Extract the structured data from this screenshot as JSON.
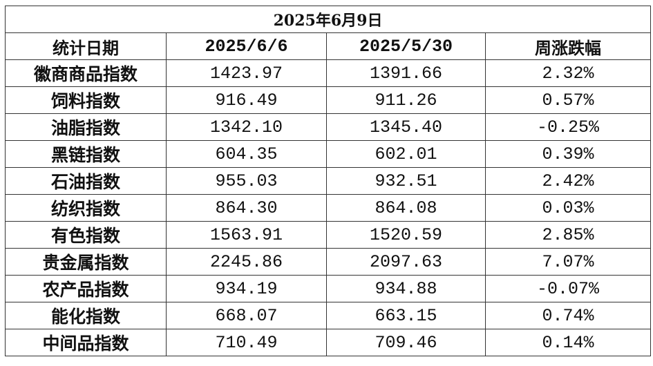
{
  "title": "2025年6月9日",
  "headers": [
    "统计日期",
    "2025/6/6",
    "2025/5/30",
    "周涨跌幅"
  ],
  "rows": [
    [
      "徽商商品指数",
      "1423.97",
      "1391.66",
      "2.32%"
    ],
    [
      "饲料指数",
      "916.49",
      "911.26",
      "0.57%"
    ],
    [
      "油脂指数",
      "1342.10",
      "1345.40",
      "-0.25%"
    ],
    [
      "黑链指数",
      "604.35",
      "602.01",
      "0.39%"
    ],
    [
      "石油指数",
      "955.03",
      "932.51",
      "2.42%"
    ],
    [
      "纺织指数",
      "864.30",
      "864.08",
      "0.03%"
    ],
    [
      "有色指数",
      "1563.91",
      "1520.59",
      "2.85%"
    ],
    [
      "贵金属指数",
      "2245.86",
      "2097.63",
      "7.07%"
    ],
    [
      "农产品指数",
      "934.19",
      "934.88",
      "-0.07%"
    ],
    [
      "能化指数",
      "668.07",
      "663.15",
      "0.74%"
    ],
    [
      "中间品指数",
      "710.49",
      "709.46",
      "0.14%"
    ]
  ]
}
